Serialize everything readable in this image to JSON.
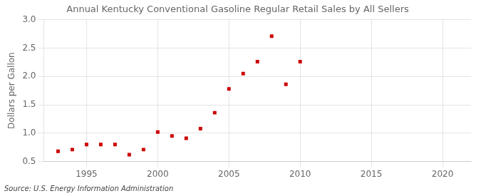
{
  "chart_data": {
    "type": "scatter",
    "title": "Annual Kentucky Conventional Gasoline Regular Retail Sales by All Sellers",
    "ylabel": "Dollars per Gallon",
    "annotation": "Source: U.S. Energy Information Administration",
    "x": [
      1993,
      1994,
      1995,
      1996,
      1997,
      1998,
      1999,
      2000,
      2001,
      2002,
      2003,
      2004,
      2005,
      2006,
      2007,
      2008,
      2009,
      2010
    ],
    "values": [
      0.68,
      0.71,
      0.8,
      0.8,
      0.8,
      0.62,
      0.71,
      1.02,
      0.95,
      0.91,
      1.08,
      1.36,
      1.78,
      2.05,
      2.26,
      2.71,
      1.86,
      2.26
    ],
    "color": "#cc0000",
    "marker": "square",
    "xlim": [
      1992,
      2022
    ],
    "xticks": [
      1995,
      2000,
      2005,
      2010,
      2015,
      2020
    ],
    "ylim": [
      0.5,
      3.0
    ],
    "yticks": [
      0.5,
      {
        "value": 1.0,
        "label": "1.0"
      },
      1.5,
      {
        "value": 2.0,
        "label": "2.0"
      },
      2.5,
      {
        "value": 3.0,
        "label": "3.0"
      }
    ],
    "grid": true
  }
}
